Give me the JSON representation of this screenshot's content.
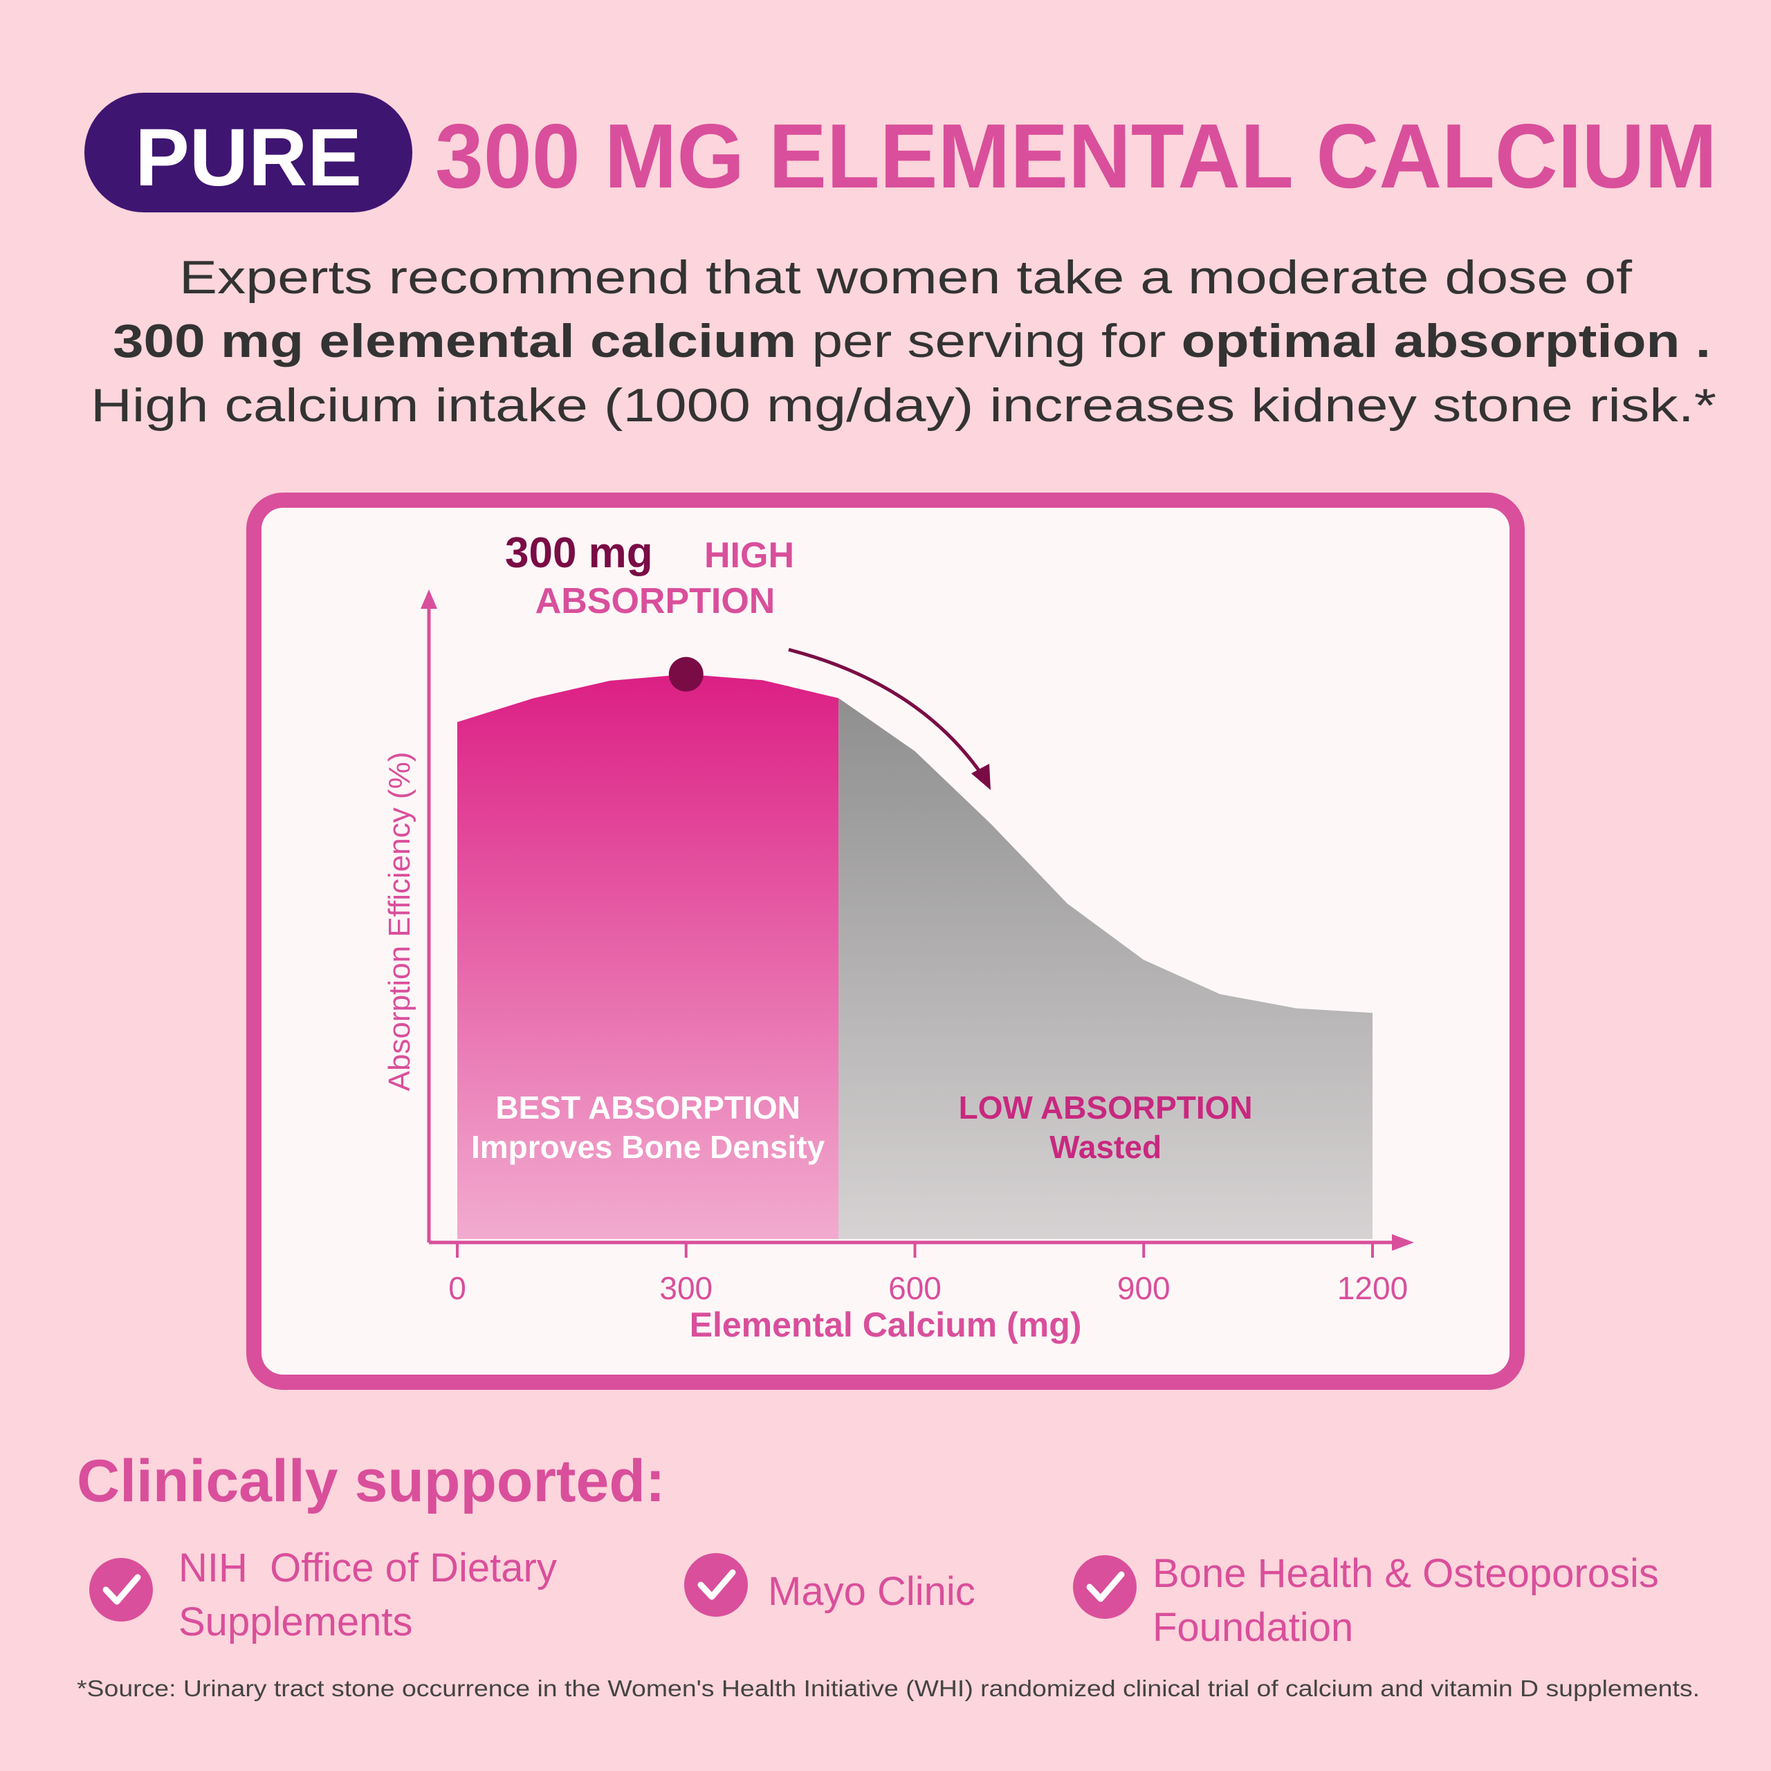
{
  "header": {
    "badge": "PURE",
    "title": "300 MG ELEMENTAL CALCIUM"
  },
  "intro": [
    "Experts recommend that women take a moderate dose of",
    "300 mg elemental calcium",
    " per serving for ",
    "optimal absorption .",
    "High calcium intake (1000 mg/day) increases kidney stone risk.*"
  ],
  "chart_data": {
    "type": "area",
    "x": [
      0,
      100,
      200,
      300,
      400,
      500,
      600,
      700,
      800,
      900,
      1000,
      1100,
      1200
    ],
    "series": [
      {
        "color": "#dc1f84",
        "values": [
          80,
          83.7,
          86.4,
          87.4,
          86.5,
          83.7,
          null,
          null,
          null,
          null,
          null,
          null,
          null
        ]
      },
      {
        "color": "#8f8f8f",
        "values": [
          null,
          null,
          null,
          null,
          null,
          83.7,
          75.5,
          64.2,
          51.9,
          43.2,
          37.9,
          35.7,
          35
        ]
      }
    ],
    "xlim": [
      0,
      1200
    ],
    "xticks": [
      0,
      300,
      600,
      900,
      1200
    ],
    "ylim": [
      0,
      100
    ],
    "x_label": "Elemental Calcium (mg)",
    "y_label": "Absorption Efficiency (%)",
    "annotation": [
      "300 mg",
      "HIGH",
      "ABSORPTION"
    ],
    "regions": [
      {
        "title": "BEST ABSORPTION",
        "text": "Improves Bone Density"
      },
      {
        "title": "LOW ABSORPTION",
        "text": "Wasted"
      }
    ]
  },
  "supported": {
    "title": "Clinically supported:",
    "items": [
      "NIH  Office of Dietary Supplements",
      "Mayo Clinic",
      "Bone Health & Osteoporosis Foundation"
    ]
  },
  "footnote": "*Source: Urinary tract stone occurrence in the Women's Health Initiative (WHI) randomized clinical trial of calcium and vitamin D supplements."
}
